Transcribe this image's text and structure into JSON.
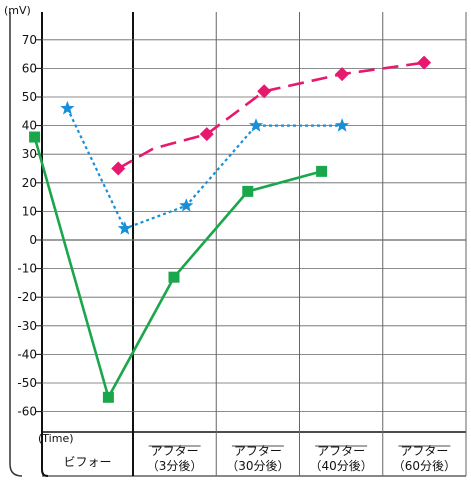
{
  "chart_data": {
    "type": "line",
    "unit_label": "(mV)",
    "xlabel": "(Time)",
    "categories": [
      [
        "ビフォー"
      ],
      [
        "アフター",
        "（3分後）"
      ],
      [
        "アフター",
        "（30分後）"
      ],
      [
        "アフター",
        "（40分後）"
      ],
      [
        "アフター",
        "（60分後）"
      ]
    ],
    "yticks": [
      70,
      60,
      50,
      40,
      30,
      20,
      10,
      0,
      -10,
      -20,
      -30,
      -40,
      -50,
      -60
    ],
    "ylim": [
      -70,
      75
    ],
    "grid": true,
    "series": [
      {
        "color": "#e6196e",
        "marker": "diamond",
        "dash": "dashed",
        "points": [
          [
            -0.18,
            25
          ],
          [
            0.25,
            32
          ],
          [
            0.9,
            37
          ],
          [
            1.6,
            52
          ],
          [
            2.55,
            58
          ],
          [
            3.55,
            62
          ]
        ]
      },
      {
        "color": "#1a8fd9",
        "marker": "star",
        "dash": "dotted",
        "points": [
          [
            -0.8,
            46
          ],
          [
            -0.1,
            4
          ],
          [
            0.65,
            12
          ],
          [
            1.5,
            40
          ],
          [
            2.55,
            40
          ]
        ]
      },
      {
        "color": "#1aa64a",
        "marker": "square",
        "dash": "solid",
        "points": [
          [
            -1.2,
            36
          ],
          [
            -0.3,
            -55
          ],
          [
            0.5,
            -13
          ],
          [
            1.4,
            17
          ],
          [
            2.3,
            24
          ]
        ]
      }
    ]
  }
}
